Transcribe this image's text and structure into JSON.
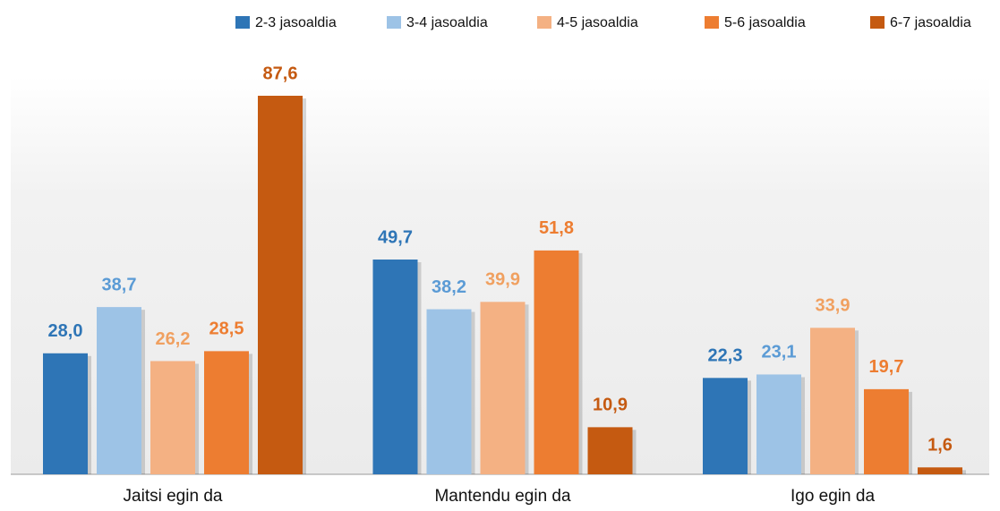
{
  "chart_data": {
    "type": "bar",
    "categories": [
      "Jaitsi egin da",
      "Mantendu egin da",
      "Igo egin da"
    ],
    "series": [
      {
        "name": "2-3 jasoaldia",
        "color": "#2e75b6",
        "values": [
          28.0,
          49.7,
          22.3
        ],
        "value_labels": [
          "28,0",
          "49,7",
          "22,3"
        ]
      },
      {
        "name": "3-4 jasoaldia",
        "color": "#9dc3e6",
        "values": [
          38.7,
          38.2,
          23.1
        ],
        "value_labels": [
          "38,7",
          "38,2",
          "23,1"
        ]
      },
      {
        "name": "4-5 jasoaldia",
        "color": "#f4b183",
        "values": [
          26.2,
          39.9,
          33.9
        ],
        "value_labels": [
          "26,2",
          "39,9",
          "33,9"
        ]
      },
      {
        "name": "5-6 jasoaldia",
        "color": "#ed7d31",
        "values": [
          28.5,
          51.8,
          19.7
        ],
        "value_labels": [
          "28,5",
          "51,8",
          "19,7"
        ]
      },
      {
        "name": "6-7 jasoaldia",
        "color": "#c55a11",
        "values": [
          87.6,
          10.9,
          1.6
        ],
        "value_labels": [
          "87,6",
          "10,9",
          "1,6"
        ]
      }
    ],
    "legend": "top-right"
  }
}
